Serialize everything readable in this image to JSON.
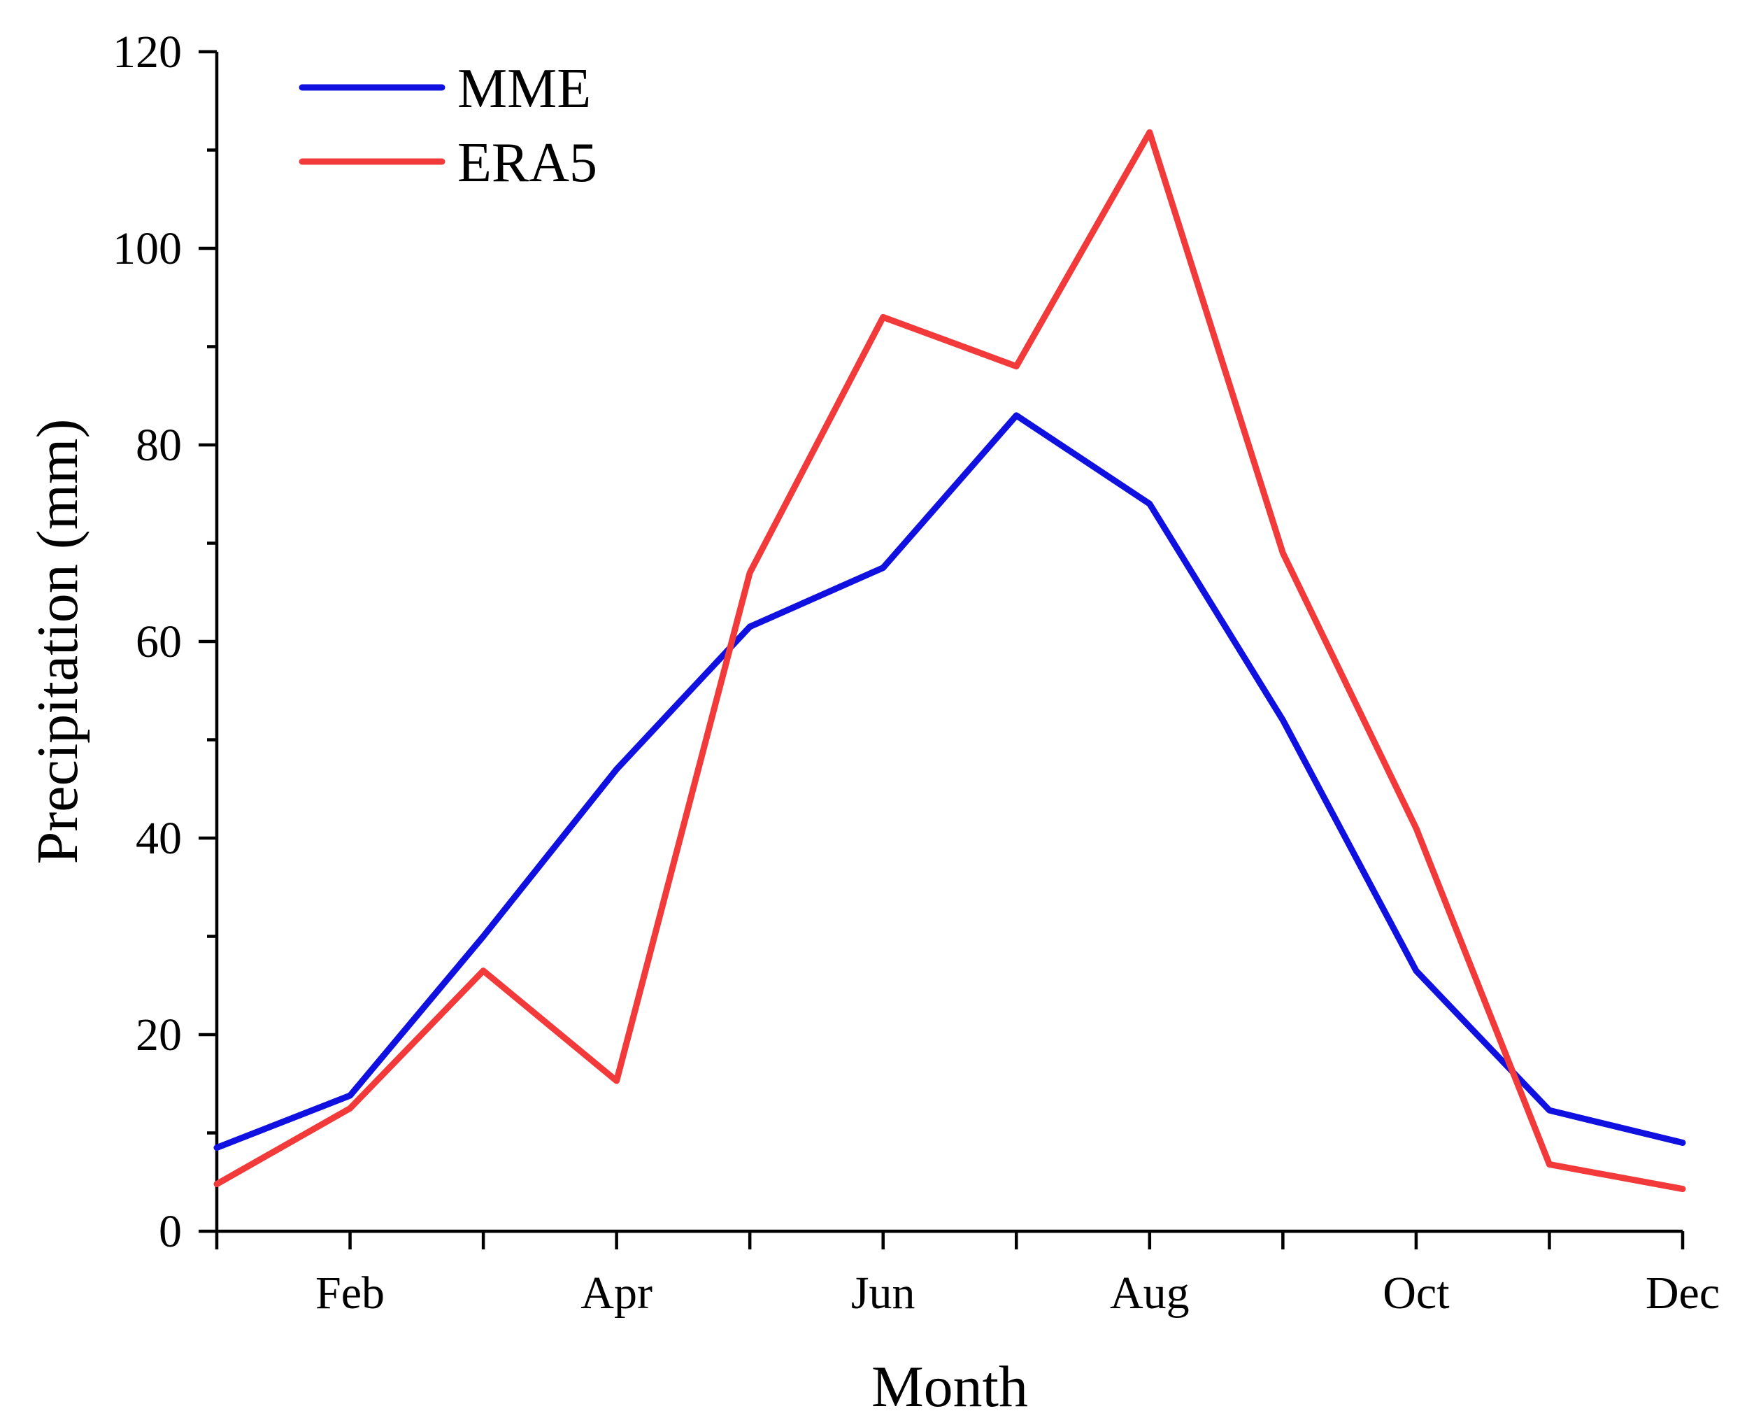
{
  "chart_data": {
    "type": "line",
    "title": "",
    "xlabel": "Month",
    "ylabel": "Precipitation (mm)",
    "months": [
      1,
      2,
      3,
      4,
      5,
      6,
      7,
      8,
      9,
      10,
      11,
      12
    ],
    "xlim": [
      1,
      12
    ],
    "ylim": [
      0,
      120
    ],
    "y_major_ticks": [
      0,
      20,
      40,
      60,
      80,
      100,
      120
    ],
    "y_tick_labels": [
      "0",
      "20",
      "40",
      "60",
      "80",
      "100",
      "120"
    ],
    "y_minor_ticks": [
      10,
      30,
      50,
      70,
      90,
      110
    ],
    "x_major_ticks": [
      1,
      2,
      3,
      4,
      5,
      6,
      7,
      8,
      9,
      10,
      11,
      12
    ],
    "x_tick_labels": [
      {
        "month": 2,
        "label": "Feb"
      },
      {
        "month": 4,
        "label": "Apr"
      },
      {
        "month": 6,
        "label": "Jun"
      },
      {
        "month": 8,
        "label": "Aug"
      },
      {
        "month": 10,
        "label": "Oct"
      },
      {
        "month": 12,
        "label": "Dec"
      }
    ],
    "grid": false,
    "legend_position": "top-left",
    "series": [
      {
        "name": "MME",
        "color": "#1010e0",
        "values": [
          8.5,
          13.8,
          30.0,
          47.0,
          61.5,
          67.5,
          83.0,
          74.0,
          52.0,
          26.5,
          12.3,
          9.0
        ]
      },
      {
        "name": "ERA5",
        "color": "#f23a3a",
        "values": [
          4.8,
          12.5,
          26.5,
          15.3,
          67.0,
          93.0,
          88.0,
          111.8,
          69.0,
          41.0,
          6.8,
          4.3
        ]
      }
    ]
  }
}
